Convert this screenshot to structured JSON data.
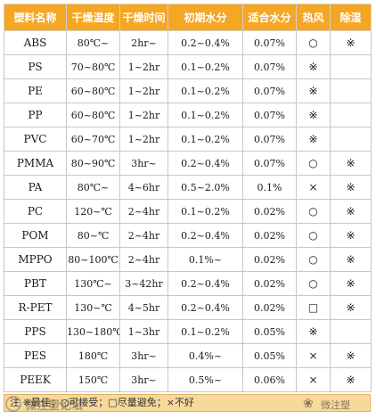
{
  "table": {
    "headers": [
      "塑料名称",
      "干燥温度",
      "干燥时间",
      "初期水分",
      "适合水分",
      "热风",
      "除湿"
    ],
    "rows": [
      [
        "ABS",
        "80℃~",
        "2hr~",
        "0.2~0.4%",
        "0.07%",
        "○",
        "※"
      ],
      [
        "PS",
        "70~80℃",
        "1~2hr",
        "0.1~0.2%",
        "0.07%",
        "※",
        ""
      ],
      [
        "PE",
        "60~80℃",
        "1~2hr",
        "0.1~0.2%",
        "0.07%",
        "※",
        ""
      ],
      [
        "PP",
        "60~80℃",
        "1~2hr",
        "0.1~0.2%",
        "0.07%",
        "※",
        ""
      ],
      [
        "PVC",
        "60~70℃",
        "1~2hr",
        "0.1~0.2%",
        "0.07%",
        "※",
        ""
      ],
      [
        "PMMA",
        "80~90℃",
        "3hr~",
        "0.2~0.4%",
        "0.07%",
        "○",
        "※"
      ],
      [
        "PA",
        "80℃~",
        "4~6hr",
        "0.5~2.0%",
        "0.1%",
        "×",
        "※"
      ],
      [
        "PC",
        "120~℃",
        "2~4hr",
        "0.1~0.2%",
        "0.02%",
        "○",
        "※"
      ],
      [
        "POM",
        "80~℃",
        "2~4hr",
        "0.2~0.4%",
        "0.02%",
        "○",
        "※"
      ],
      [
        "MPPO",
        "80~100℃",
        "2~4hr",
        "0.1%~",
        "0.02%",
        "○",
        "※"
      ],
      [
        "PBT",
        "130℃~",
        "3~42hr",
        "0.2~0.4%",
        "0.02%",
        "○",
        "※"
      ],
      [
        "R-PET",
        "130~℃",
        "4~5hr",
        "0.2~0.4%",
        "0.02%",
        "□",
        "※"
      ],
      [
        "PPS",
        "130~180℃",
        "1~3hr",
        "0.1~0.2%",
        "0.05%",
        "※",
        ""
      ],
      [
        "PES",
        "180℃",
        "3hr~",
        "0.4%~",
        "0.05%",
        "×",
        "※"
      ],
      [
        "PEEK",
        "150℃",
        "3hr~",
        "0.5%~",
        "0.06%",
        "×",
        "※"
      ]
    ]
  },
  "legend": "注 ※最佳；○可接受；□尽量避免；×不好",
  "watermark_left": "微注塑论坛",
  "watermark_right": "微注塑",
  "colors": {
    "header_bg": "#f5a623",
    "header_text": "#ffffff",
    "legend_bg": "#f7d99a"
  },
  "icons": {
    "watermark_left": "circle-logo-icon",
    "watermark_right": "wechat-icon"
  }
}
